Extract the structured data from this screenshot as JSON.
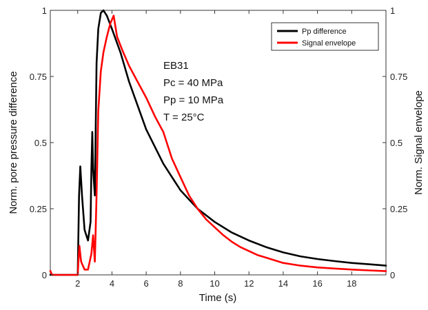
{
  "chart_data": {
    "type": "line",
    "title": "",
    "xlabel": "Time (s)",
    "ylabel_left": "Norm. pore pressure difference",
    "ylabel_right": "Norm. Signal envelope",
    "xlim": [
      0.4,
      20
    ],
    "ylim_left": [
      0,
      1
    ],
    "ylim_right": [
      0,
      1
    ],
    "x_ticks": [
      2,
      4,
      6,
      8,
      10,
      12,
      14,
      16,
      18
    ],
    "x_tick_labels": [
      "2",
      "4",
      "6",
      "8",
      "10",
      "12",
      "14",
      "16",
      "18"
    ],
    "y_ticks": [
      0,
      0.25,
      0.5,
      0.75,
      1
    ],
    "y_tick_labels_left": [
      "0",
      "0.25",
      "0.5",
      "0.75",
      "1"
    ],
    "y_tick_labels_right": [
      "0",
      "0.25",
      "0.5",
      "0.75",
      "1"
    ],
    "grid": false,
    "legend_position": "top-right",
    "annotations": [
      "EB31",
      "Pc = 40 MPa",
      "Pp = 10 MPa",
      "T = 25°C"
    ],
    "series": [
      {
        "name": "Pp difference",
        "color": "#000000",
        "axis": "left",
        "x": [
          0.4,
          2.0,
          2.08,
          2.15,
          2.25,
          2.4,
          2.6,
          2.75,
          2.8,
          2.85,
          2.9,
          3.0,
          3.1,
          3.2,
          3.35,
          3.5,
          3.7,
          4.0,
          4.5,
          5.0,
          6.0,
          7.0,
          8.0,
          9.0,
          10.0,
          11.0,
          12.0,
          13.0,
          14.0,
          15.0,
          16.0,
          17.0,
          18.0,
          19.0,
          20.0
        ],
        "y": [
          0,
          0,
          0.3,
          0.41,
          0.3,
          0.17,
          0.13,
          0.2,
          0.4,
          0.54,
          0.4,
          0.3,
          0.8,
          0.93,
          0.99,
          1.0,
          0.98,
          0.93,
          0.84,
          0.73,
          0.55,
          0.42,
          0.32,
          0.25,
          0.2,
          0.16,
          0.13,
          0.105,
          0.085,
          0.07,
          0.06,
          0.052,
          0.045,
          0.04,
          0.035
        ]
      },
      {
        "name": "Signal envelope",
        "color": "#ff0000",
        "axis": "right",
        "x": [
          0.4,
          0.5,
          2.0,
          2.05,
          2.1,
          2.2,
          2.4,
          2.6,
          2.8,
          2.9,
          3.0,
          3.1,
          3.2,
          3.35,
          3.5,
          3.7,
          3.9,
          4.1,
          4.3,
          4.6,
          5.0,
          5.5,
          6.0,
          6.5,
          7.0,
          7.5,
          8.0,
          8.5,
          9.0,
          9.5,
          10.0,
          10.5,
          11.0,
          11.5,
          12.0,
          12.5,
          13.0,
          13.5,
          14.0,
          14.5,
          15.0,
          16.0,
          17.0,
          18.0,
          19.0,
          20.0
        ],
        "y": [
          0.015,
          0.0,
          0.0,
          0.06,
          0.11,
          0.05,
          0.02,
          0.02,
          0.08,
          0.15,
          0.05,
          0.3,
          0.62,
          0.77,
          0.84,
          0.9,
          0.95,
          0.98,
          0.9,
          0.85,
          0.79,
          0.73,
          0.67,
          0.6,
          0.54,
          0.44,
          0.37,
          0.3,
          0.25,
          0.21,
          0.18,
          0.15,
          0.125,
          0.105,
          0.09,
          0.075,
          0.065,
          0.055,
          0.045,
          0.04,
          0.035,
          0.028,
          0.024,
          0.02,
          0.017,
          0.014
        ]
      }
    ]
  }
}
